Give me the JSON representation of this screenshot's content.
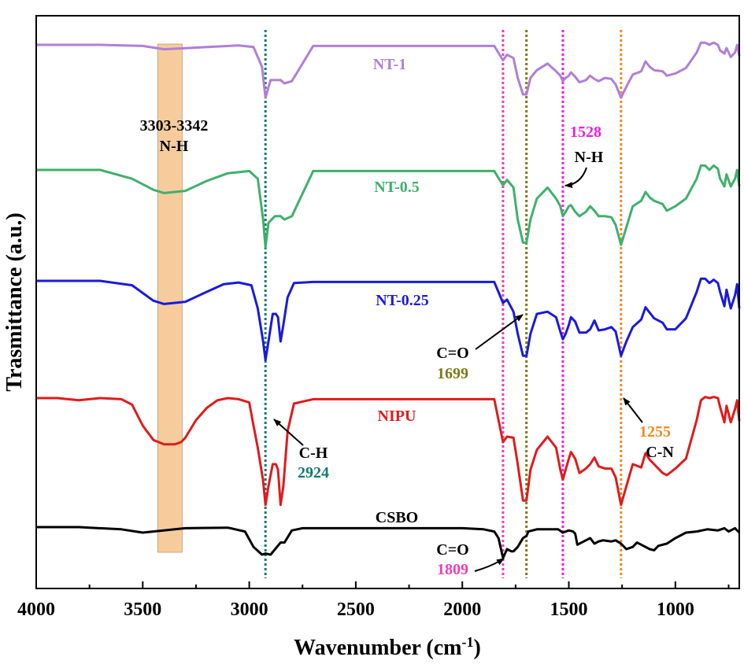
{
  "chart_data": {
    "type": "line",
    "title": "",
    "xlabel": "Wavenumber (cm",
    "xlabel_sup": "-1",
    "xlabel_close": ")",
    "ylabel": "Trasmittance (a.u.)",
    "xlim": [
      4000,
      700
    ],
    "x_reversed": true,
    "xticks": [
      4000,
      3500,
      3000,
      2500,
      2000,
      1500,
      1000
    ],
    "xtick_labels": [
      "4000",
      "3500",
      "3000",
      "2500",
      "2000",
      "1500",
      "1000"
    ],
    "grid": false,
    "legend": "none",
    "series": [
      {
        "name": "NT-1",
        "color": "#b07fd6",
        "x": [
          4000,
          3700,
          3500,
          3400,
          3300,
          3150,
          3050,
          2980,
          2940,
          2924,
          2900,
          2870,
          2853,
          2835,
          2800,
          2700,
          1850,
          1809,
          1790,
          1760,
          1740,
          1715,
          1699,
          1680,
          1650,
          1600,
          1560,
          1540,
          1528,
          1515,
          1500,
          1490,
          1470,
          1450,
          1420,
          1400,
          1380,
          1360,
          1330,
          1300,
          1280,
          1255,
          1230,
          1200,
          1160,
          1140,
          1120,
          1100,
          1060,
          1040,
          1000,
          950,
          900,
          880,
          860,
          840,
          820,
          800,
          790,
          770,
          760,
          740,
          720,
          710,
          700
        ],
        "y": [
          0.0,
          0.0,
          -0.01,
          -0.04,
          -0.03,
          -0.015,
          -0.005,
          -0.02,
          -0.2,
          -0.48,
          -0.32,
          -0.32,
          -0.32,
          -0.35,
          -0.33,
          -0.01,
          -0.01,
          -0.14,
          -0.09,
          -0.12,
          -0.3,
          -0.45,
          -0.45,
          -0.3,
          -0.23,
          -0.17,
          -0.24,
          -0.28,
          -0.33,
          -0.3,
          -0.28,
          -0.25,
          -0.29,
          -0.34,
          -0.32,
          -0.28,
          -0.31,
          -0.33,
          -0.3,
          -0.31,
          -0.36,
          -0.48,
          -0.38,
          -0.27,
          -0.24,
          -0.15,
          -0.2,
          -0.23,
          -0.24,
          -0.28,
          -0.26,
          -0.21,
          -0.07,
          0.02,
          0.02,
          0.0,
          0.02,
          0.0,
          -0.05,
          -0.08,
          -0.03,
          -0.11,
          -0.07,
          0.0,
          -0.1
        ]
      },
      {
        "name": "NT-0.5",
        "color": "#3fb06b",
        "x": [
          4000,
          3700,
          3550,
          3450,
          3400,
          3300,
          3200,
          3100,
          3000,
          2960,
          2935,
          2924,
          2910,
          2880,
          2870,
          2853,
          2835,
          2800,
          2700,
          1850,
          1809,
          1790,
          1760,
          1740,
          1715,
          1699,
          1680,
          1650,
          1600,
          1560,
          1540,
          1528,
          1515,
          1500,
          1490,
          1470,
          1450,
          1420,
          1400,
          1380,
          1360,
          1330,
          1300,
          1280,
          1255,
          1230,
          1200,
          1160,
          1140,
          1120,
          1100,
          1060,
          1040,
          1000,
          950,
          900,
          880,
          860,
          840,
          820,
          800,
          790,
          770,
          760,
          740,
          720,
          710,
          700
        ],
        "y": [
          0.0,
          0.0,
          -0.08,
          -0.18,
          -0.21,
          -0.19,
          -0.1,
          -0.03,
          -0.01,
          -0.08,
          -0.45,
          -0.7,
          -0.48,
          -0.42,
          -0.42,
          -0.42,
          -0.45,
          -0.42,
          -0.01,
          -0.01,
          -0.14,
          -0.09,
          -0.16,
          -0.45,
          -0.66,
          -0.66,
          -0.45,
          -0.26,
          -0.16,
          -0.26,
          -0.33,
          -0.42,
          -0.38,
          -0.33,
          -0.32,
          -0.38,
          -0.42,
          -0.38,
          -0.33,
          -0.37,
          -0.42,
          -0.42,
          -0.43,
          -0.5,
          -0.68,
          -0.52,
          -0.33,
          -0.28,
          -0.2,
          -0.25,
          -0.28,
          -0.31,
          -0.37,
          -0.33,
          -0.26,
          -0.08,
          0.04,
          0.04,
          0.0,
          0.04,
          0.01,
          -0.08,
          -0.15,
          -0.04,
          -0.15,
          -0.08,
          0.0,
          -0.15
        ]
      },
      {
        "name": "NT-0.25",
        "color": "#1a1adb",
        "x": [
          4000,
          3700,
          3550,
          3450,
          3400,
          3300,
          3200,
          3120,
          3050,
          2990,
          2960,
          2935,
          2924,
          2910,
          2890,
          2875,
          2865,
          2853,
          2840,
          2820,
          2790,
          2700,
          1850,
          1809,
          1790,
          1760,
          1740,
          1715,
          1699,
          1680,
          1650,
          1600,
          1560,
          1540,
          1528,
          1515,
          1500,
          1490,
          1470,
          1450,
          1420,
          1400,
          1380,
          1360,
          1330,
          1300,
          1280,
          1255,
          1230,
          1200,
          1160,
          1140,
          1120,
          1100,
          1060,
          1040,
          1000,
          950,
          900,
          880,
          860,
          840,
          820,
          800,
          790,
          770,
          760,
          740,
          720,
          710,
          700
        ],
        "y": [
          0.0,
          0.0,
          -0.04,
          -0.18,
          -0.21,
          -0.19,
          -0.1,
          -0.03,
          -0.015,
          -0.04,
          -0.25,
          -0.55,
          -0.72,
          -0.55,
          -0.3,
          -0.3,
          -0.33,
          -0.55,
          -0.4,
          -0.15,
          -0.02,
          -0.01,
          -0.01,
          -0.2,
          -0.17,
          -0.28,
          -0.48,
          -0.68,
          -0.68,
          -0.48,
          -0.3,
          -0.28,
          -0.33,
          -0.46,
          -0.53,
          -0.48,
          -0.4,
          -0.33,
          -0.37,
          -0.47,
          -0.47,
          -0.44,
          -0.36,
          -0.45,
          -0.44,
          -0.42,
          -0.46,
          -0.68,
          -0.55,
          -0.42,
          -0.35,
          -0.24,
          -0.29,
          -0.34,
          -0.38,
          -0.44,
          -0.44,
          -0.34,
          -0.1,
          0.02,
          0.02,
          -0.02,
          0.01,
          -0.02,
          -0.1,
          -0.23,
          -0.08,
          -0.25,
          -0.13,
          -0.03,
          -0.25
        ]
      },
      {
        "name": "NIPU",
        "color": "#e01b1b",
        "x": [
          4000,
          3900,
          3800,
          3700,
          3600,
          3550,
          3500,
          3450,
          3400,
          3350,
          3320,
          3300,
          3250,
          3200,
          3150,
          3100,
          3050,
          3000,
          2980,
          2960,
          2935,
          2924,
          2910,
          2890,
          2875,
          2865,
          2853,
          2840,
          2820,
          2790,
          2700,
          1850,
          1809,
          1790,
          1760,
          1740,
          1715,
          1699,
          1680,
          1650,
          1600,
          1560,
          1540,
          1528,
          1515,
          1500,
          1490,
          1470,
          1450,
          1420,
          1400,
          1380,
          1360,
          1330,
          1300,
          1280,
          1255,
          1230,
          1200,
          1160,
          1140,
          1120,
          1100,
          1060,
          1040,
          1000,
          950,
          900,
          880,
          860,
          840,
          820,
          800,
          790,
          770,
          760,
          740,
          720,
          710,
          700
        ],
        "y": [
          0.0,
          0.0,
          -0.02,
          0.0,
          -0.01,
          -0.06,
          -0.25,
          -0.38,
          -0.42,
          -0.42,
          -0.4,
          -0.36,
          -0.2,
          -0.09,
          -0.02,
          0.0,
          -0.01,
          -0.04,
          -0.25,
          -0.45,
          -0.75,
          -0.97,
          -0.8,
          -0.6,
          -0.6,
          -0.65,
          -0.97,
          -0.8,
          -0.3,
          -0.05,
          -0.01,
          -0.01,
          -0.4,
          -0.35,
          -0.36,
          -0.6,
          -0.93,
          -0.93,
          -0.65,
          -0.47,
          -0.35,
          -0.45,
          -0.65,
          -0.74,
          -0.65,
          -0.55,
          -0.49,
          -0.55,
          -0.68,
          -0.64,
          -0.6,
          -0.54,
          -0.62,
          -0.64,
          -0.64,
          -0.72,
          -0.97,
          -0.8,
          -0.6,
          -0.63,
          -0.5,
          -0.56,
          -0.6,
          -0.68,
          -0.7,
          -0.64,
          -0.55,
          -0.2,
          -0.02,
          0.01,
          0.0,
          0.01,
          0.0,
          -0.08,
          -0.22,
          -0.07,
          -0.22,
          -0.1,
          -0.02,
          -0.21
        ]
      },
      {
        "name": "CSBO",
        "color": "#000000",
        "x": [
          4000,
          3800,
          3600,
          3500,
          3300,
          3100,
          3020,
          2980,
          2940,
          2924,
          2900,
          2870,
          2853,
          2835,
          2800,
          2750,
          2700,
          2000,
          1900,
          1850,
          1830,
          1809,
          1790,
          1770,
          1760,
          1740,
          1715,
          1699,
          1690,
          1650,
          1600,
          1550,
          1528,
          1500,
          1480,
          1470,
          1460,
          1440,
          1420,
          1400,
          1380,
          1360,
          1340,
          1300,
          1280,
          1255,
          1230,
          1200,
          1180,
          1150,
          1120,
          1100,
          1080,
          1040,
          1000,
          950,
          900,
          850,
          800,
          770,
          750,
          720,
          700
        ],
        "y": [
          0.0,
          0.0,
          -0.02,
          -0.05,
          -0.01,
          -0.005,
          -0.04,
          -0.18,
          -0.25,
          -0.24,
          -0.25,
          -0.18,
          -0.14,
          -0.14,
          -0.03,
          -0.01,
          -0.01,
          -0.01,
          -0.02,
          -0.04,
          -0.1,
          -0.28,
          -0.2,
          -0.22,
          -0.22,
          -0.18,
          -0.1,
          -0.08,
          -0.04,
          -0.02,
          -0.02,
          -0.02,
          -0.05,
          -0.03,
          -0.04,
          -0.06,
          -0.16,
          -0.14,
          -0.12,
          -0.1,
          -0.15,
          -0.13,
          -0.12,
          -0.13,
          -0.12,
          -0.15,
          -0.2,
          -0.18,
          -0.14,
          -0.17,
          -0.2,
          -0.21,
          -0.17,
          -0.15,
          -0.1,
          -0.05,
          -0.04,
          -0.02,
          -0.03,
          -0.01,
          -0.04,
          -0.01,
          -0.05
        ]
      }
    ],
    "series_labels": [
      "NT-1",
      "NT-0.5",
      "NT-0.25",
      "NIPU",
      "CSBO"
    ],
    "reference_lines": [
      {
        "x": 2924,
        "color": "#127a72"
      },
      {
        "x": 1809,
        "color": "#ee3fb1"
      },
      {
        "x": 1699,
        "color": "#7c7a14"
      },
      {
        "x": 1528,
        "color": "#ee1fe3"
      },
      {
        "x": 1255,
        "color": "#f08a1e"
      }
    ],
    "shaded_band": {
      "x_from": 3342,
      "x_to": 3303,
      "color": "#f6c48d"
    },
    "annotations": {
      "band_range": "3303-3342",
      "band_bond": "N-H",
      "nh_value": "1528",
      "nh_bond": "N-H",
      "co1_bond": "C=O",
      "co1_value": "1699",
      "ch_bond": "C-H",
      "ch_value": "2924",
      "cn_value": "1255",
      "cn_bond": "C-N",
      "co2_bond": "C=O",
      "co2_value": "1809"
    },
    "annotation_colors": {
      "nh_value": "#ee1fe3",
      "co1_value": "#7c7a14",
      "ch_value": "#127a72",
      "cn_value": "#f08a1e",
      "co2_value": "#ee3fb1"
    }
  }
}
